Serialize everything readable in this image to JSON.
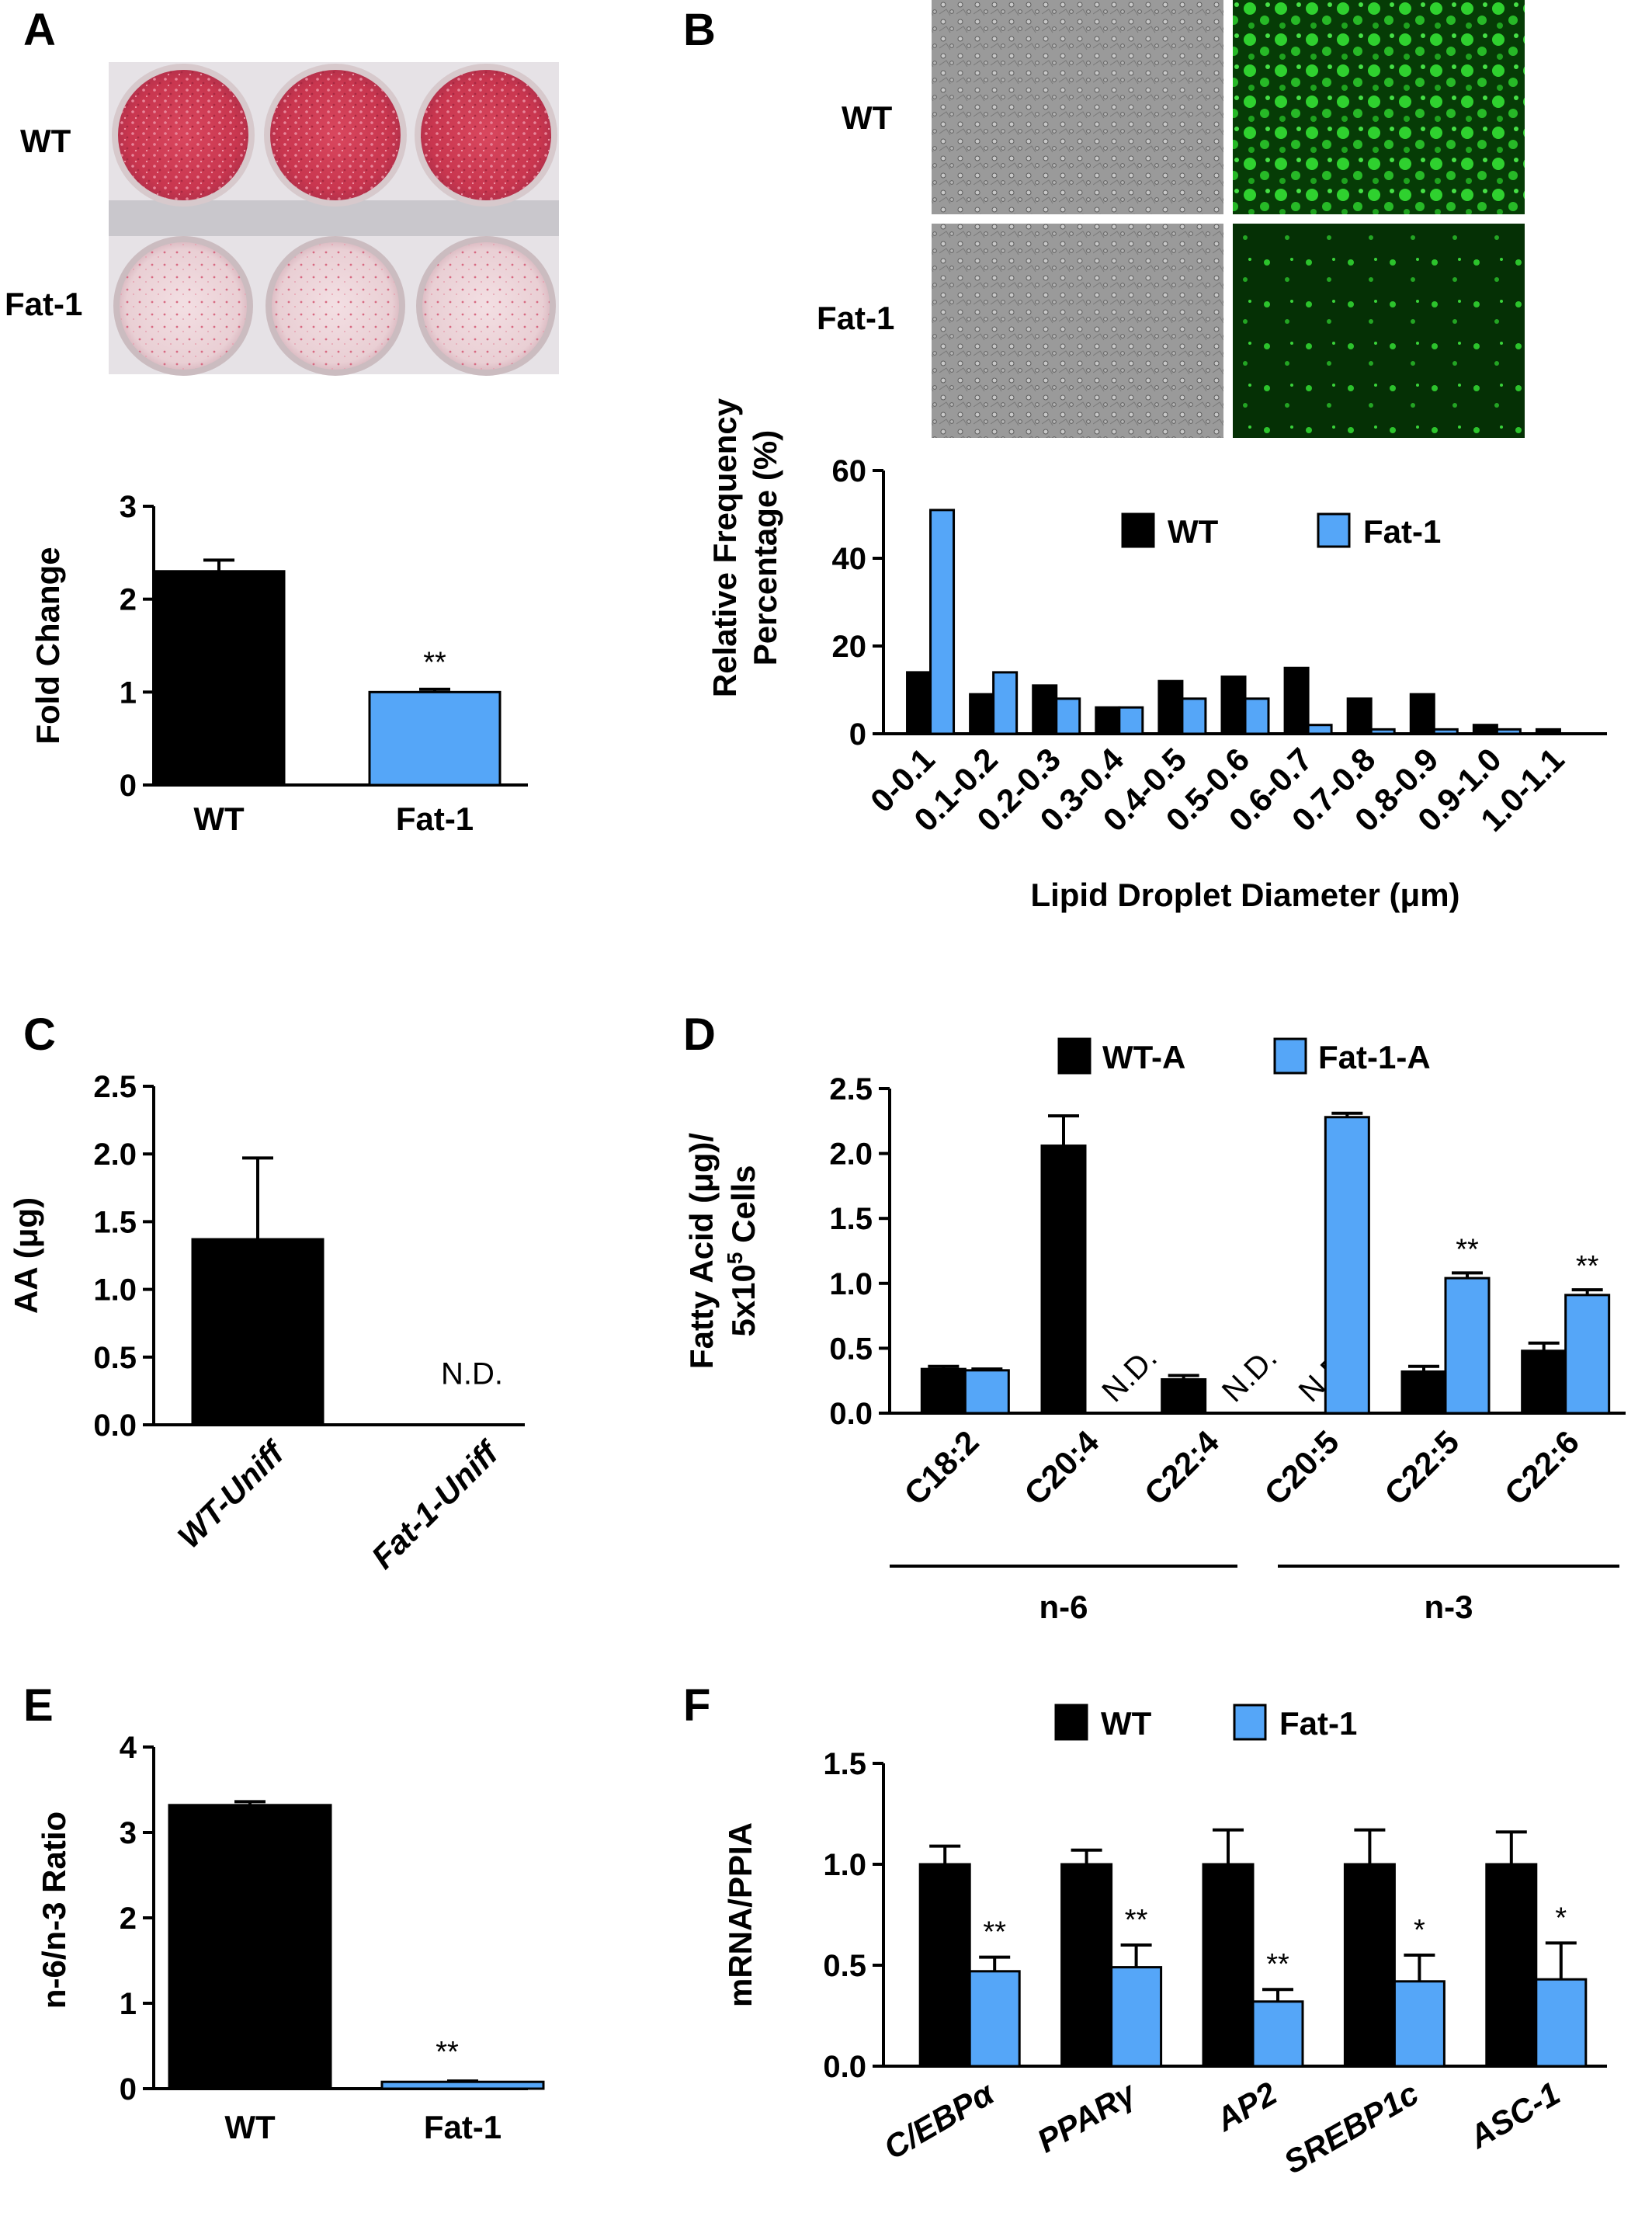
{
  "colors": {
    "wt": "#000000",
    "fat1": "#55a6f8"
  },
  "panels": {
    "A": {
      "letter": "A",
      "photo_row_labels": [
        "WT",
        "Fat-1"
      ],
      "photo_description_icon": "red-stained-well-plate-photo"
    },
    "B": {
      "letter": "B",
      "image_row_labels": [
        "WT",
        "Fat-1"
      ],
      "image_icons": [
        "phase-contrast-micrograph",
        "green-fluorescence-micrograph"
      ]
    },
    "C": {
      "letter": "C"
    },
    "D": {
      "letter": "D",
      "group_labels": [
        "n-6",
        "n-3"
      ]
    },
    "E": {
      "letter": "E"
    },
    "F": {
      "letter": "F"
    }
  },
  "chart_data": [
    {
      "panel": "A",
      "type": "bar",
      "categories": [
        "WT",
        "Fat-1"
      ],
      "values": [
        2.3,
        1.0
      ],
      "errors": [
        0.12,
        0.03
      ],
      "annotations": [
        "",
        "**"
      ],
      "ylabel": "Fold Change",
      "ylim": [
        0,
        3
      ],
      "yticks": [
        "0",
        "1",
        "2",
        "3"
      ]
    },
    {
      "panel": "B",
      "type": "bar",
      "categories": [
        "0-0.1",
        "0.1-0.2",
        "0.2-0.3",
        "0.3-0.4",
        "0.4-0.5",
        "0.5-0.6",
        "0.6-0.7",
        "0.7-0.8",
        "0.8-0.9",
        "0.9-1.0",
        "1.0-1.1"
      ],
      "series": [
        {
          "name": "WT",
          "values": [
            14,
            9,
            11,
            6,
            12,
            13,
            15,
            8,
            9,
            2,
            1
          ]
        },
        {
          "name": "Fat-1",
          "values": [
            51,
            14,
            8,
            6,
            8,
            8,
            2,
            1,
            1,
            1,
            0
          ]
        }
      ],
      "ylabel_line1": "Relative Frequency",
      "ylabel_line2": "Percentage (%)",
      "xlabel": "Lipid Droplet Diameter (μm)",
      "ylim": [
        0,
        60
      ],
      "yticks": [
        "0",
        "20",
        "40",
        "60"
      ],
      "legend": "top-right"
    },
    {
      "panel": "C",
      "type": "bar",
      "categories": [
        "WT-Uniff",
        "Fat-1-Uniff"
      ],
      "values": [
        1.37,
        null
      ],
      "errors": [
        0.6,
        null
      ],
      "annotations": [
        "",
        "N.D."
      ],
      "ylabel": "AA (μg)",
      "ylim": [
        0,
        2.5
      ],
      "yticks": [
        "0.0",
        "0.5",
        "1.0",
        "1.5",
        "2.0",
        "2.5"
      ]
    },
    {
      "panel": "D",
      "type": "bar",
      "categories": [
        "C18:2",
        "C20:4",
        "C22:4",
        "C20:5",
        "C22:5",
        "C22:6"
      ],
      "series": [
        {
          "name": "WT-A",
          "values": [
            0.34,
            2.06,
            0.26,
            null,
            0.32,
            0.48
          ],
          "errors": [
            0.02,
            0.23,
            0.03,
            null,
            0.04,
            0.06
          ],
          "annotations": [
            "",
            "",
            "",
            "N.D.",
            "",
            ""
          ]
        },
        {
          "name": "Fat-1-A",
          "values": [
            0.33,
            null,
            null,
            2.28,
            1.04,
            0.91
          ],
          "errors": [
            0.01,
            null,
            null,
            0.03,
            0.04,
            0.04
          ],
          "annotations": [
            "",
            "N.D.",
            "N.D.",
            "",
            "**",
            "**"
          ]
        }
      ],
      "ylabel_line1": "Fatty Acid (μg)/",
      "ylabel_line2": "5x10",
      "ylabel_sup": "5",
      "ylabel_line2_end": " Cells",
      "ylim": [
        0,
        2.5
      ],
      "yticks": [
        "0.0",
        "0.5",
        "1.0",
        "1.5",
        "2.0",
        "2.5"
      ],
      "legend": "top"
    },
    {
      "panel": "E",
      "type": "bar",
      "categories": [
        "WT",
        "Fat-1"
      ],
      "values": [
        3.32,
        0.08
      ],
      "errors": [
        0.04,
        0.01
      ],
      "annotations": [
        "",
        "**"
      ],
      "ylabel": "n-6/n-3 Ratio",
      "ylim": [
        0,
        4
      ],
      "yticks": [
        "0",
        "1",
        "2",
        "3",
        "4"
      ]
    },
    {
      "panel": "F",
      "type": "bar",
      "categories": [
        "C/EBPα",
        "PPARγ",
        "AP2",
        "SREBP1c",
        "ASC-1"
      ],
      "series": [
        {
          "name": "WT",
          "values": [
            1.0,
            1.0,
            1.0,
            1.0,
            1.0
          ],
          "errors": [
            0.09,
            0.07,
            0.17,
            0.17,
            0.16
          ]
        },
        {
          "name": "Fat-1",
          "values": [
            0.47,
            0.49,
            0.32,
            0.42,
            0.43
          ],
          "errors": [
            0.07,
            0.11,
            0.06,
            0.13,
            0.18
          ],
          "annotations": [
            "**",
            "**",
            "**",
            "*",
            "*"
          ]
        }
      ],
      "ylabel": "mRNA/PPIA",
      "ylim": [
        0,
        1.5
      ],
      "yticks": [
        "0.0",
        "0.5",
        "1.0",
        "1.5"
      ],
      "legend": "top"
    }
  ]
}
